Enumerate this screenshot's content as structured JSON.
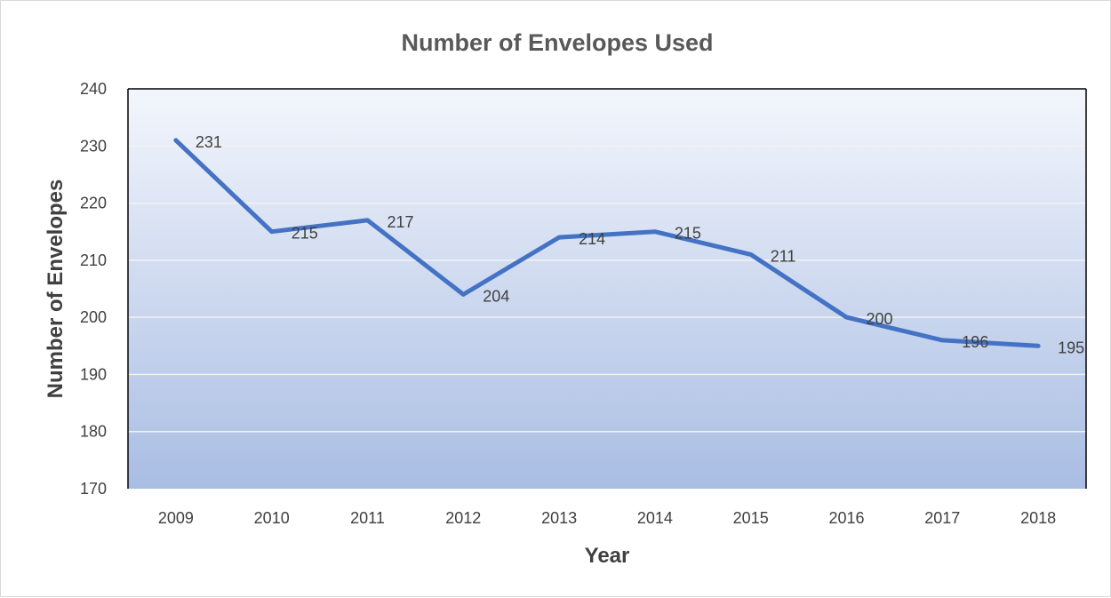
{
  "chart_data": {
    "type": "line",
    "title": "Number of Envelopes Used",
    "xlabel": "Year",
    "ylabel": "Number of Envelopes",
    "categories": [
      "2009",
      "2010",
      "2011",
      "2012",
      "2013",
      "2014",
      "2015",
      "2016",
      "2017",
      "2018"
    ],
    "series": [
      {
        "values": [
          231,
          215,
          217,
          204,
          214,
          215,
          211,
          200,
          196,
          195
        ]
      }
    ],
    "ylim": [
      170,
      240
    ],
    "yticks": [
      170,
      180,
      190,
      200,
      210,
      220,
      230,
      240
    ],
    "grid": true,
    "legend": "none",
    "data_labels": true,
    "colors": {
      "line": "#4472C4",
      "plot_bg_top": "#F3F6FC",
      "plot_bg_bottom": "#A9BDE3",
      "axis": "#000000"
    }
  }
}
